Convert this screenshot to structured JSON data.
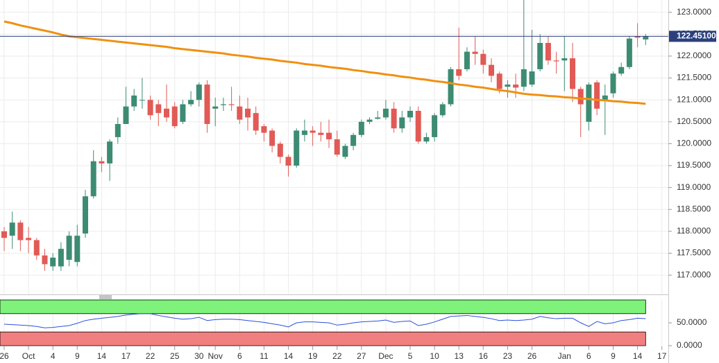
{
  "chart_data": {
    "type": "candlestick",
    "categories": [
      "26",
      null,
      null,
      "Oct",
      null,
      null,
      "4",
      null,
      null,
      "9",
      null,
      null,
      "14",
      null,
      null,
      "17",
      null,
      null,
      "22",
      null,
      null,
      "25",
      null,
      null,
      "30",
      null,
      "Nov",
      null,
      null,
      "6",
      null,
      null,
      "11",
      null,
      null,
      "14",
      null,
      null,
      "19",
      null,
      null,
      "22",
      null,
      null,
      "27",
      null,
      null,
      "Dec",
      null,
      null,
      "5",
      null,
      null,
      "10",
      null,
      null,
      "13",
      null,
      null,
      "16",
      null,
      null,
      "23",
      null,
      null,
      "26",
      null,
      null,
      null,
      "Jan",
      null,
      null,
      "6",
      null,
      null,
      "9",
      null,
      null,
      "14",
      null,
      null,
      "17"
    ],
    "open": [
      118.0,
      117.9,
      118.2,
      117.85,
      117.8,
      117.45,
      117.2,
      117.2,
      117.35,
      117.3,
      117.95,
      118.8,
      119.6,
      119.55,
      120.15,
      120.45,
      120.85,
      121.0,
      121.0,
      120.9,
      120.8,
      120.85,
      120.5,
      120.9,
      121.0,
      121.35,
      120.8,
      120.88,
      120.9,
      120.85,
      120.8,
      120.7,
      120.4,
      120.3,
      120.0,
      119.7,
      119.5,
      120.2,
      120.3,
      120.25,
      120.25,
      120.1,
      119.7,
      119.95,
      120.2,
      120.5,
      120.57,
      120.6,
      120.8,
      120.35,
      120.6,
      120.75,
      120.05,
      120.15,
      120.65,
      120.9,
      121.7,
      121.7,
      122.1,
      122.05,
      121.8,
      121.6,
      121.3,
      121.35,
      121.3,
      121.35,
      121.7,
      122.3,
      121.9,
      121.9,
      121.95,
      121.25,
      120.5,
      121.4,
      121.0,
      121.15,
      121.6,
      121.75,
      122.45,
      122.38,
      null,
      null
    ],
    "high": [
      118.1,
      118.45,
      118.25,
      118.1,
      117.85,
      117.6,
      117.5,
      117.75,
      118.0,
      118.15,
      118.95,
      119.85,
      119.7,
      120.1,
      120.6,
      121.3,
      121.25,
      121.5,
      121.1,
      121.0,
      121.35,
      120.95,
      121.0,
      121.2,
      121.4,
      121.45,
      121.05,
      121.05,
      121.3,
      121.1,
      121.05,
      120.85,
      120.45,
      120.35,
      120.05,
      119.75,
      120.35,
      120.55,
      120.4,
      120.5,
      120.55,
      120.3,
      120.0,
      120.25,
      120.55,
      120.6,
      120.75,
      121.0,
      120.95,
      120.75,
      120.85,
      120.85,
      120.25,
      120.7,
      120.95,
      121.75,
      122.65,
      122.2,
      122.45,
      122.15,
      121.95,
      121.65,
      121.45,
      121.6,
      123.28,
      122.6,
      122.5,
      122.45,
      122.1,
      122.45,
      122.3,
      121.3,
      121.4,
      121.45,
      121.35,
      121.65,
      121.85,
      122.45,
      122.75,
      122.5,
      null,
      null
    ],
    "low": [
      117.55,
      117.6,
      117.55,
      117.5,
      117.35,
      117.1,
      117.1,
      117.1,
      117.2,
      117.2,
      117.85,
      118.75,
      119.35,
      119.15,
      120.0,
      120.45,
      120.75,
      120.8,
      120.55,
      120.4,
      120.5,
      120.35,
      120.45,
      120.85,
      120.85,
      120.25,
      120.4,
      120.75,
      120.75,
      120.45,
      120.3,
      120.2,
      120.05,
      119.8,
      119.55,
      119.25,
      119.45,
      120.05,
      119.95,
      120.05,
      119.9,
      119.7,
      119.65,
      119.85,
      120.15,
      120.45,
      120.55,
      120.55,
      120.25,
      120.25,
      120.5,
      120.0,
      120.0,
      120.05,
      120.6,
      120.85,
      121.45,
      121.65,
      121.8,
      121.6,
      121.4,
      121.15,
      121.05,
      121.05,
      121.2,
      121.3,
      121.65,
      121.8,
      121.6,
      121.2,
      120.95,
      120.15,
      120.3,
      120.65,
      120.2,
      121.05,
      121.55,
      121.7,
      122.2,
      122.25,
      null,
      null
    ],
    "close": [
      117.85,
      118.2,
      117.8,
      117.8,
      117.45,
      117.25,
      117.4,
      117.6,
      117.9,
      117.9,
      118.8,
      119.6,
      119.55,
      120.05,
      120.45,
      120.85,
      121.1,
      121.0,
      120.65,
      120.7,
      120.6,
      120.4,
      120.9,
      121.0,
      121.35,
      120.45,
      120.85,
      120.9,
      120.88,
      120.55,
      120.6,
      120.3,
      120.25,
      119.95,
      119.7,
      119.5,
      120.3,
      120.3,
      120.25,
      120.2,
      120.1,
      119.75,
      119.95,
      120.2,
      120.5,
      120.55,
      120.6,
      120.8,
      120.35,
      120.6,
      120.75,
      120.05,
      120.15,
      120.65,
      120.9,
      121.7,
      121.55,
      122.1,
      122.05,
      121.8,
      121.55,
      121.25,
      121.35,
      121.28,
      121.7,
      121.65,
      122.3,
      121.9,
      121.88,
      121.95,
      121.25,
      120.9,
      121.35,
      120.8,
      121.1,
      121.6,
      121.75,
      122.4,
      122.42,
      122.451,
      null,
      null
    ],
    "up_color": "#3d8b73",
    "down_color": "#e15a55",
    "ylim": [
      116.56,
      123.28
    ],
    "yticks": [
      {
        "value": 117.0,
        "label": "117.0000"
      },
      {
        "value": 117.5,
        "label": "117.5000"
      },
      {
        "value": 118.0,
        "label": "118.0000"
      },
      {
        "value": 118.5,
        "label": "118.5000"
      },
      {
        "value": 119.0,
        "label": "119.0000"
      },
      {
        "value": 119.5,
        "label": "119.5000"
      },
      {
        "value": 120.0,
        "label": "120.0000"
      },
      {
        "value": 120.5,
        "label": "120.5000"
      },
      {
        "value": 121.0,
        "label": "121.0000"
      },
      {
        "value": 121.5,
        "label": "121.5000"
      },
      {
        "value": 122.0,
        "label": "122.0000"
      },
      {
        "value": 122.5,
        "label": "122.5000"
      },
      {
        "value": 123.0,
        "label": "123.0000"
      }
    ],
    "grid": true,
    "moving_average": {
      "color": "#f0900f",
      "values": [
        122.79,
        122.75,
        122.7,
        122.66,
        122.62,
        122.58,
        122.54,
        122.49,
        122.45,
        122.43,
        122.41,
        122.39,
        122.37,
        122.35,
        122.33,
        122.31,
        122.29,
        122.27,
        122.25,
        122.23,
        122.21,
        122.18,
        122.16,
        122.14,
        122.12,
        122.1,
        122.08,
        122.06,
        122.03,
        122.01,
        121.99,
        121.96,
        121.94,
        121.92,
        121.89,
        121.87,
        121.85,
        121.82,
        121.8,
        121.78,
        121.75,
        121.73,
        121.71,
        121.68,
        121.66,
        121.63,
        121.61,
        121.58,
        121.56,
        121.53,
        121.51,
        121.48,
        121.46,
        121.43,
        121.41,
        121.38,
        121.35,
        121.33,
        121.3,
        121.28,
        121.25,
        121.22,
        121.2,
        121.17,
        121.14,
        121.12,
        121.11,
        121.09,
        121.08,
        121.06,
        121.05,
        121.03,
        121.02,
        121.0,
        120.99,
        120.97,
        120.96,
        120.94,
        120.93,
        120.91,
        null,
        null
      ]
    },
    "last_price": {
      "value": 122.451,
      "label": "122.45100",
      "color": "#2b3f7c"
    },
    "rsi": {
      "color": "#2b50d8",
      "values": [
        47,
        46,
        45,
        44,
        42,
        39,
        40,
        42,
        44,
        49,
        55,
        58,
        60,
        62,
        64,
        67,
        69,
        70,
        70,
        66,
        63,
        60,
        58,
        59,
        62,
        55,
        57,
        58,
        58,
        57,
        55,
        53,
        51,
        48,
        45,
        41,
        50,
        52,
        52,
        51,
        50,
        45,
        47,
        50,
        52,
        53,
        54,
        56,
        51,
        53,
        54,
        44,
        47,
        52,
        58,
        64,
        65,
        66,
        64,
        62,
        59,
        55,
        56,
        55,
        56,
        58,
        64,
        61,
        59,
        60,
        60,
        50,
        42,
        53,
        48,
        50,
        55,
        57,
        60,
        59,
        null,
        null
      ],
      "ylim": [
        0,
        100
      ],
      "yticks": [
        {
          "value": 50,
          "label": "50.0000"
        },
        {
          "value": 0,
          "label": "0.0000"
        }
      ],
      "overbought": 70,
      "oversold": 30,
      "overbought_color": "#7ef27a",
      "oversold_color": "#f27f7f"
    }
  }
}
